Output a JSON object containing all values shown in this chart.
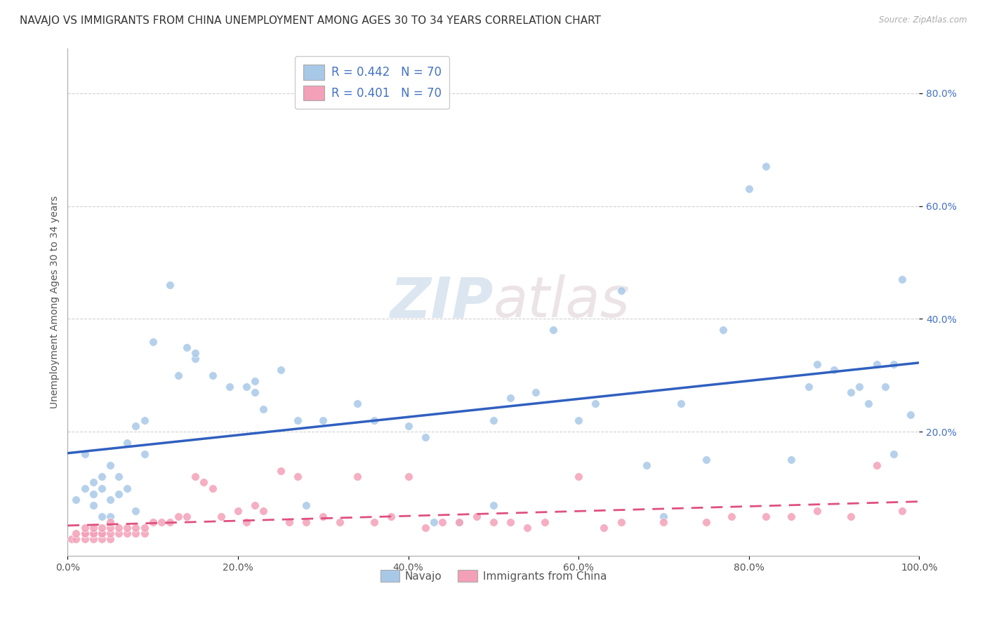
{
  "title": "NAVAJO VS IMMIGRANTS FROM CHINA UNEMPLOYMENT AMONG AGES 30 TO 34 YEARS CORRELATION CHART",
  "source": "Source: ZipAtlas.com",
  "ylabel": "Unemployment Among Ages 30 to 34 years",
  "xlim": [
    0.0,
    1.0
  ],
  "ylim": [
    -0.02,
    0.88
  ],
  "xtick_labels": [
    "0.0%",
    "20.0%",
    "40.0%",
    "60.0%",
    "80.0%",
    "100.0%"
  ],
  "xtick_vals": [
    0.0,
    0.2,
    0.4,
    0.6,
    0.8,
    1.0
  ],
  "ytick_labels": [
    "20.0%",
    "40.0%",
    "60.0%",
    "80.0%"
  ],
  "ytick_vals": [
    0.2,
    0.4,
    0.6,
    0.8
  ],
  "navajo_color": "#a8c8e8",
  "china_color": "#f4a0b8",
  "navajo_line_color": "#3060c0",
  "china_line_color": "#e05080",
  "navajo_R": 0.442,
  "navajo_N": 70,
  "china_R": 0.401,
  "china_N": 70,
  "navajo_scatter_x": [
    0.01,
    0.02,
    0.02,
    0.03,
    0.03,
    0.03,
    0.04,
    0.04,
    0.04,
    0.05,
    0.05,
    0.05,
    0.06,
    0.06,
    0.07,
    0.07,
    0.08,
    0.08,
    0.09,
    0.09,
    0.1,
    0.12,
    0.13,
    0.14,
    0.15,
    0.15,
    0.17,
    0.19,
    0.21,
    0.22,
    0.22,
    0.23,
    0.25,
    0.27,
    0.28,
    0.3,
    0.34,
    0.36,
    0.4,
    0.42,
    0.43,
    0.46,
    0.5,
    0.5,
    0.52,
    0.55,
    0.57,
    0.6,
    0.62,
    0.65,
    0.68,
    0.7,
    0.72,
    0.75,
    0.77,
    0.8,
    0.82,
    0.85,
    0.87,
    0.88,
    0.9,
    0.92,
    0.93,
    0.94,
    0.95,
    0.96,
    0.97,
    0.97,
    0.98,
    0.99
  ],
  "navajo_scatter_y": [
    0.08,
    0.1,
    0.16,
    0.07,
    0.09,
    0.11,
    0.05,
    0.1,
    0.12,
    0.05,
    0.08,
    0.14,
    0.09,
    0.12,
    0.1,
    0.18,
    0.06,
    0.21,
    0.16,
    0.22,
    0.36,
    0.46,
    0.3,
    0.35,
    0.33,
    0.34,
    0.3,
    0.28,
    0.28,
    0.29,
    0.27,
    0.24,
    0.31,
    0.22,
    0.07,
    0.22,
    0.25,
    0.22,
    0.21,
    0.19,
    0.04,
    0.04,
    0.22,
    0.07,
    0.26,
    0.27,
    0.38,
    0.22,
    0.25,
    0.45,
    0.14,
    0.05,
    0.25,
    0.15,
    0.38,
    0.63,
    0.67,
    0.15,
    0.28,
    0.32,
    0.31,
    0.27,
    0.28,
    0.25,
    0.32,
    0.28,
    0.32,
    0.16,
    0.47,
    0.23
  ],
  "china_scatter_x": [
    0.005,
    0.01,
    0.01,
    0.02,
    0.02,
    0.02,
    0.02,
    0.03,
    0.03,
    0.03,
    0.03,
    0.04,
    0.04,
    0.04,
    0.04,
    0.05,
    0.05,
    0.05,
    0.05,
    0.06,
    0.06,
    0.07,
    0.07,
    0.08,
    0.08,
    0.09,
    0.09,
    0.1,
    0.11,
    0.12,
    0.13,
    0.14,
    0.15,
    0.16,
    0.17,
    0.18,
    0.2,
    0.21,
    0.22,
    0.23,
    0.25,
    0.26,
    0.27,
    0.28,
    0.3,
    0.32,
    0.34,
    0.36,
    0.38,
    0.4,
    0.42,
    0.44,
    0.46,
    0.48,
    0.5,
    0.52,
    0.54,
    0.56,
    0.6,
    0.63,
    0.65,
    0.7,
    0.75,
    0.78,
    0.82,
    0.85,
    0.88,
    0.92,
    0.95,
    0.98
  ],
  "china_scatter_y": [
    0.01,
    0.01,
    0.02,
    0.01,
    0.02,
    0.02,
    0.03,
    0.01,
    0.02,
    0.02,
    0.03,
    0.01,
    0.02,
    0.02,
    0.03,
    0.01,
    0.02,
    0.03,
    0.04,
    0.02,
    0.03,
    0.02,
    0.03,
    0.02,
    0.03,
    0.02,
    0.03,
    0.04,
    0.04,
    0.04,
    0.05,
    0.05,
    0.12,
    0.11,
    0.1,
    0.05,
    0.06,
    0.04,
    0.07,
    0.06,
    0.13,
    0.04,
    0.12,
    0.04,
    0.05,
    0.04,
    0.12,
    0.04,
    0.05,
    0.12,
    0.03,
    0.04,
    0.04,
    0.05,
    0.04,
    0.04,
    0.03,
    0.04,
    0.12,
    0.03,
    0.04,
    0.04,
    0.04,
    0.05,
    0.05,
    0.05,
    0.06,
    0.05,
    0.14,
    0.06
  ],
  "watermark_zip": "ZIP",
  "watermark_atlas": "atlas",
  "background_color": "#ffffff",
  "grid_color": "#cccccc",
  "legend_color": "#4472c4",
  "title_fontsize": 11,
  "axis_label_fontsize": 10,
  "tick_fontsize": 10
}
